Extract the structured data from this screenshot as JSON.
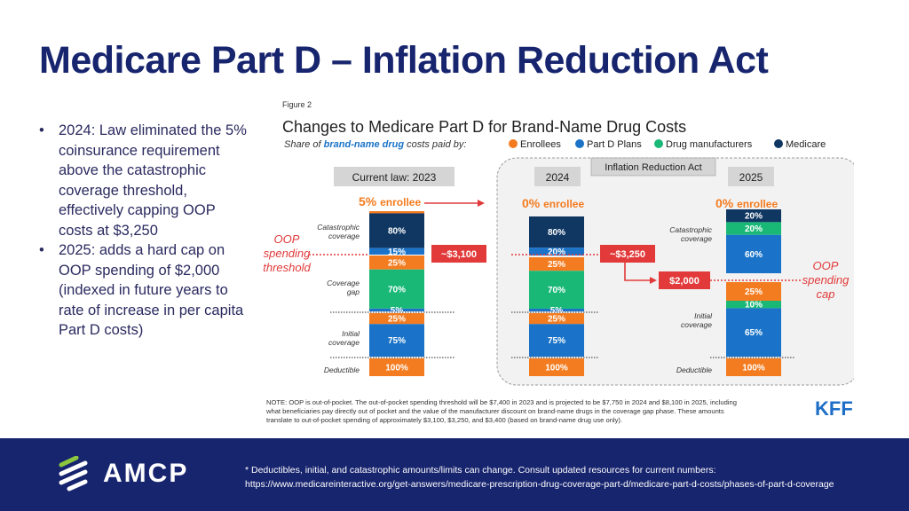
{
  "slide": {
    "title": "Medicare Part D – Inflation Reduction Act",
    "bullets": [
      "2024: Law eliminated the 5% coinsurance requirement above the catastrophic coverage threshold, effectively capping OOP costs at $3,250",
      "2025: adds a hard cap on OOP spending of $2,000 (indexed in future years to rate of increase in per capita Part D costs)"
    ]
  },
  "footer": {
    "logo_text": "AMCP",
    "note_line1": "* Deductibles, initial, and catastrophic amounts/limits can change. Consult updated resources for current numbers:",
    "note_line2": "https://www.medicareinteractive.org/get-answers/medicare-prescription-drug-coverage-part-d/medicare-part-d-costs/phases-of-part-d-coverage"
  },
  "colors": {
    "title": "#17246e",
    "footer_bg": "#17246e",
    "enrollees": "#f47c20",
    "plans": "#1a73c8",
    "manufacturers": "#19b877",
    "medicare": "#0f3762",
    "callout_red": "#e23a3a",
    "kff": "#1e6ec8"
  },
  "chart_data": {
    "type": "bar",
    "figure_label": "Figure 2",
    "title": "Changes to Medicare Part D for Brand-Name Drug Costs",
    "subtitle_prefix": "Share of",
    "subtitle_em": "brand-name drug",
    "subtitle_suffix": "costs paid by:",
    "legend": [
      "Enrollees",
      "Part D Plans",
      "Drug manufacturers",
      "Medicare"
    ],
    "ira_label": "Inflation Reduction Act",
    "enrollee_labels": {
      "2023": "5%",
      "2024": "0%",
      "2025": "0%"
    },
    "enrollee_word": "enrollee",
    "categories": [
      "Current law: 2023",
      "2024",
      "2025"
    ],
    "phases": {
      "2023": [
        {
          "phase": "Catastrophic coverage",
          "segments": [
            {
              "payer": "Enrollees",
              "value": 5,
              "label": ""
            },
            {
              "payer": "Medicare",
              "value": 80,
              "label": "80%"
            },
            {
              "payer": "Part D Plans",
              "value": 15,
              "label": "15%"
            }
          ]
        },
        {
          "phase": "Coverage gap",
          "segments": [
            {
              "payer": "Enrollees",
              "value": 25,
              "label": "25%"
            },
            {
              "payer": "Drug manufacturers",
              "value": 70,
              "label": "70%"
            },
            {
              "payer": "Part D Plans",
              "value": 5,
              "label": "5%"
            }
          ]
        },
        {
          "phase": "Initial coverage",
          "segments": [
            {
              "payer": "Enrollees",
              "value": 25,
              "label": "25%"
            },
            {
              "payer": "Part D Plans",
              "value": 75,
              "label": "75%"
            }
          ]
        },
        {
          "phase": "Deductible",
          "segments": [
            {
              "payer": "Enrollees",
              "value": 100,
              "label": "100%"
            }
          ]
        }
      ],
      "2024": [
        {
          "phase": "Catastrophic coverage",
          "segments": [
            {
              "payer": "Medicare",
              "value": 80,
              "label": "80%"
            },
            {
              "payer": "Part D Plans",
              "value": 20,
              "label": "20%"
            }
          ]
        },
        {
          "phase": "Coverage gap",
          "segments": [
            {
              "payer": "Enrollees",
              "value": 25,
              "label": "25%"
            },
            {
              "payer": "Drug manufacturers",
              "value": 70,
              "label": "70%"
            },
            {
              "payer": "Part D Plans",
              "value": 5,
              "label": "5%"
            }
          ]
        },
        {
          "phase": "Initial coverage",
          "segments": [
            {
              "payer": "Enrollees",
              "value": 25,
              "label": "25%"
            },
            {
              "payer": "Part D Plans",
              "value": 75,
              "label": "75%"
            }
          ]
        },
        {
          "phase": "Deductible",
          "segments": [
            {
              "payer": "Enrollees",
              "value": 100,
              "label": "100%"
            }
          ]
        }
      ],
      "2025": [
        {
          "phase": "Catastrophic coverage",
          "segments": [
            {
              "payer": "Medicare",
              "value": 20,
              "label": "20%"
            },
            {
              "payer": "Drug manufacturers",
              "value": 20,
              "label": "20%"
            },
            {
              "payer": "Part D Plans",
              "value": 60,
              "label": "60%"
            }
          ]
        },
        {
          "phase": "Initial coverage",
          "segments": [
            {
              "payer": "Enrollees",
              "value": 25,
              "label": "25%"
            },
            {
              "payer": "Drug manufacturers",
              "value": 10,
              "label": "10%"
            },
            {
              "payer": "Part D Plans",
              "value": 65,
              "label": "65%"
            }
          ]
        },
        {
          "phase": "Deductible",
          "segments": [
            {
              "payer": "Enrollees",
              "value": 100,
              "label": "100%"
            }
          ]
        }
      ]
    },
    "phase_labels_left": [
      "Catastrophic coverage",
      "Coverage gap",
      "Initial coverage",
      "Deductible"
    ],
    "phase_labels_right": [
      "Catastrophic coverage",
      "Initial coverage",
      "Deductible"
    ],
    "thresholds": {
      "2023": "~$3,100",
      "2024": "~$3,250",
      "2025": "$2,000"
    },
    "annotation_left": "OOP spending threshold",
    "annotation_right": "OOP spending cap",
    "note_lines": [
      "NOTE: OOP is out-of-pocket. The out-of-pocket spending threshold will be $7,400 in 2023 and is projected to be $7,750 in 2024 and $8,100 in 2025, including",
      "what beneficiaries pay directly out of pocket and the value of the manufacturer discount on brand-name drugs in the coverage gap phase. These amounts",
      "translate to out-of-pocket spending of approximately $3,100, $3,250, and $3,400 (based on brand-name drug use only)."
    ],
    "source_logo": "KFF"
  }
}
